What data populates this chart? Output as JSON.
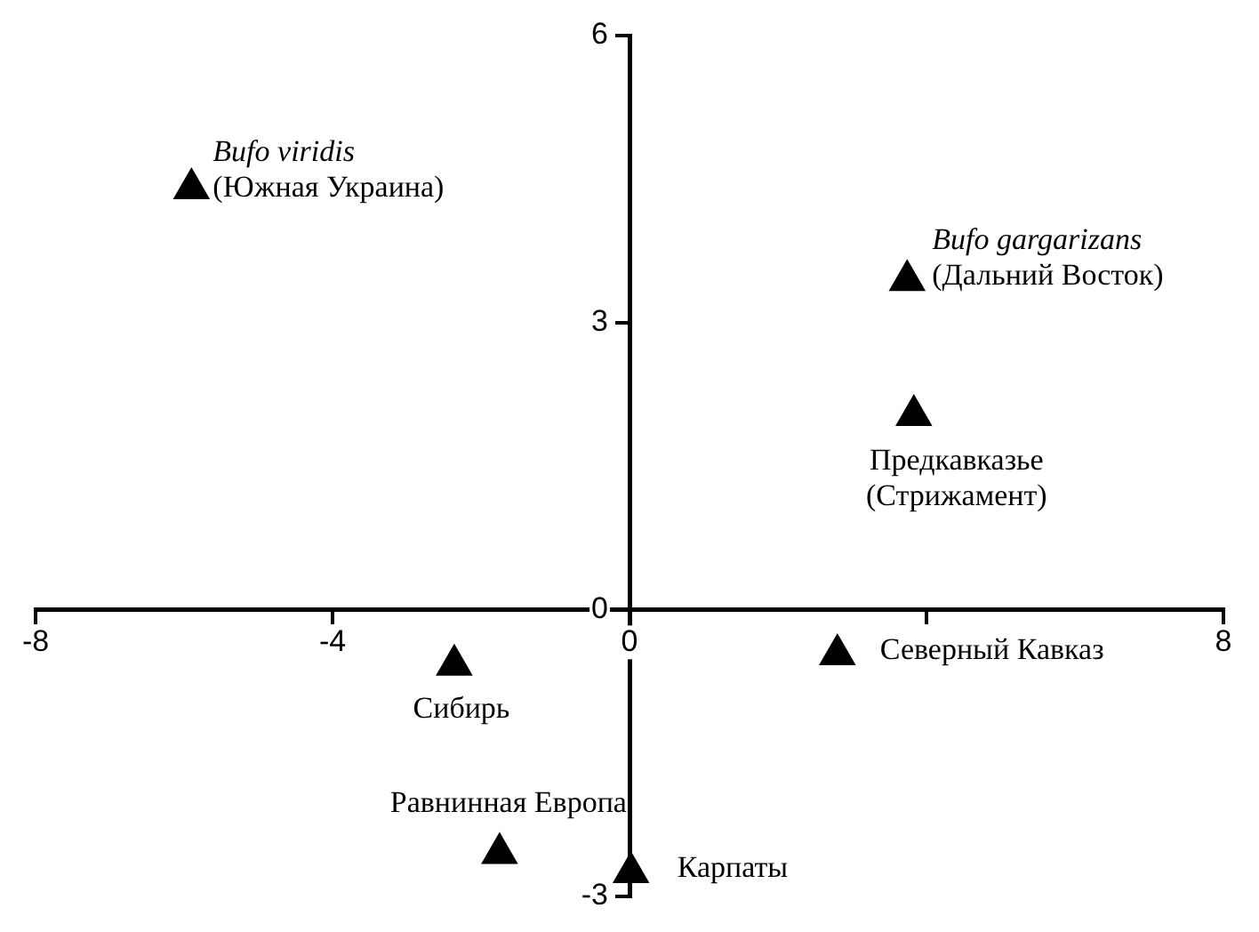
{
  "chart_data": {
    "type": "scatter",
    "marker": "triangle",
    "grid": false,
    "legend": false,
    "series": [
      {
        "color": "#000000",
        "x": [
          -5.9,
          3.74,
          3.83,
          2.8,
          -2.36,
          -1.75,
          0.02
        ],
        "values": [
          4.4,
          3.44,
          2.03,
          -0.47,
          -0.58,
          -2.55,
          -2.75
        ]
      }
    ],
    "xlim": [
      -8,
      8
    ],
    "xticks": [
      -8,
      -4,
      0,
      {
        "value": 4,
        "label": null
      },
      8
    ],
    "ylim": [
      -3,
      6
    ],
    "yticks": [
      -3,
      0,
      3,
      6
    ],
    "annotations": [
      {
        "text": "Bufo viridis",
        "x": -5.9,
        "y": 4.4
      },
      {
        "text": "(Южная Украина)",
        "x": -5.9,
        "y": 4.4
      },
      {
        "text": "Bufo gargarizans",
        "x": 3.74,
        "y": 3.44
      },
      {
        "text": "(Дальний Восток)",
        "x": 3.74,
        "y": 3.44
      },
      {
        "text": "Предкавказье",
        "x": 3.83,
        "y": 2.03
      },
      {
        "text": "(Стрижамент)",
        "x": 3.83,
        "y": 2.03
      },
      {
        "text": "Северный Кавказ",
        "x": 2.8,
        "y": -0.47
      },
      {
        "text": "Сибирь",
        "x": -2.36,
        "y": -0.58
      },
      {
        "text": "Равнинная Европа",
        "x": -1.75,
        "y": -2.55
      },
      {
        "text": "Карпаты",
        "x": 0.02,
        "y": -2.75
      }
    ]
  }
}
